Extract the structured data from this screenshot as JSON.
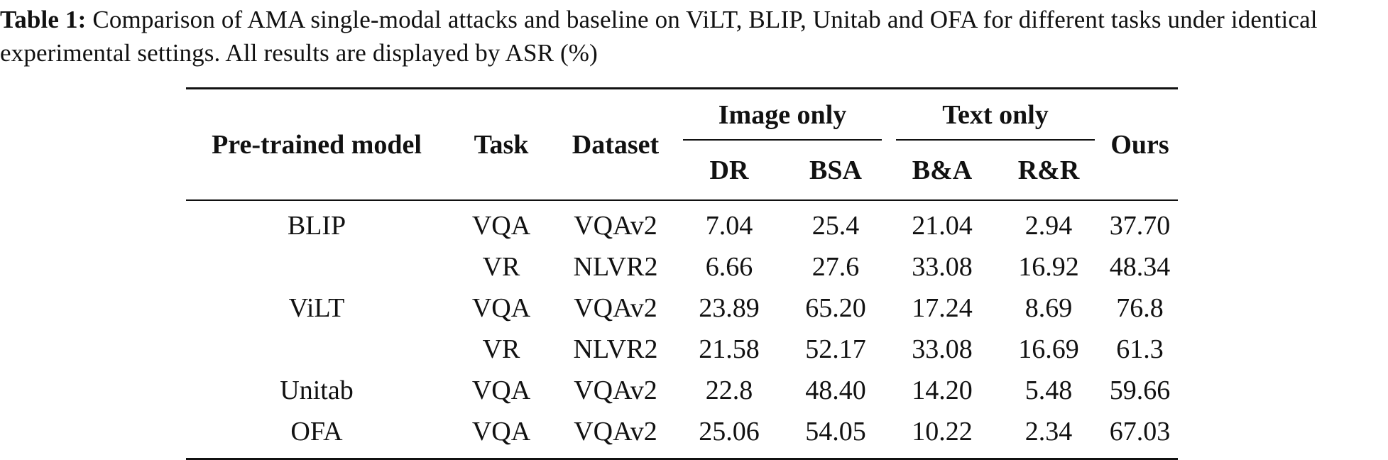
{
  "caption": {
    "label": "Table 1:",
    "text": "Comparison of AMA single-modal attacks and baseline on ViLT, BLIP, Unitab and OFA for different tasks under identical experimental settings. All results are displayed by ASR (%)"
  },
  "table": {
    "headers": {
      "model": "Pre-trained model",
      "task": "Task",
      "dataset": "Dataset",
      "image_only": "Image only",
      "text_only": "Text only",
      "ours": "Ours",
      "dr": "DR",
      "bsa": "BSA",
      "ba": "B&A",
      "rr": "R&R"
    },
    "rows": [
      {
        "model": "BLIP",
        "task": "VQA",
        "dataset": "VQAv2",
        "dr": "7.04",
        "bsa": "25.4",
        "ba": "21.04",
        "rr": "2.94",
        "ours": "37.70"
      },
      {
        "model": "",
        "task": "VR",
        "dataset": "NLVR2",
        "dr": "6.66",
        "bsa": "27.6",
        "ba": "33.08",
        "rr": "16.92",
        "ours": "48.34"
      },
      {
        "model": "ViLT",
        "task": "VQA",
        "dataset": "VQAv2",
        "dr": "23.89",
        "bsa": "65.20",
        "ba": "17.24",
        "rr": "8.69",
        "ours": "76.8"
      },
      {
        "model": "",
        "task": "VR",
        "dataset": "NLVR2",
        "dr": "21.58",
        "bsa": "52.17",
        "ba": "33.08",
        "rr": "16.69",
        "ours": "61.3"
      },
      {
        "model": "Unitab",
        "task": "VQA",
        "dataset": "VQAv2",
        "dr": "22.8",
        "bsa": "48.40",
        "ba": "14.20",
        "rr": "5.48",
        "ours": "59.66"
      },
      {
        "model": "OFA",
        "task": "VQA",
        "dataset": "VQAv2",
        "dr": "25.06",
        "bsa": "54.05",
        "ba": "10.22",
        "rr": "2.34",
        "ours": "67.03"
      }
    ]
  }
}
